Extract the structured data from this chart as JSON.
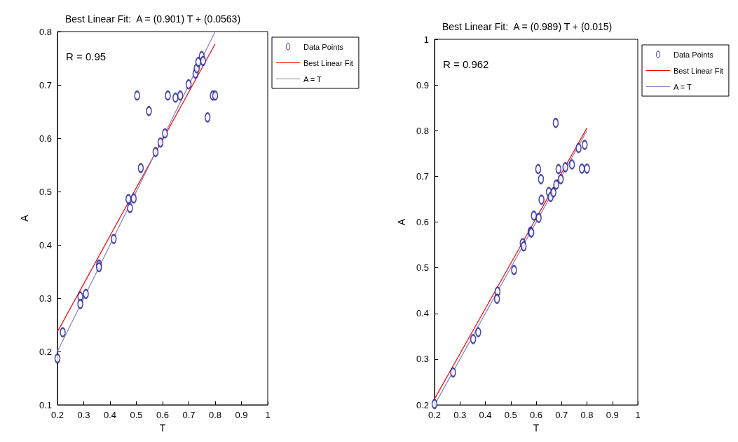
{
  "chart_data": [
    {
      "type": "scatter",
      "title": "Best Linear Fit:  A = (0.901) T + (0.0563)",
      "xlabel": "T",
      "ylabel": "A",
      "annotations": [
        "R = 0.95"
      ],
      "xlim": [
        0.2,
        1
      ],
      "xticks": [
        0.2,
        0.3,
        0.4,
        0.5,
        0.6,
        0.7,
        0.8,
        0.9,
        1
      ],
      "ylim": [
        0.1,
        0.8
      ],
      "yticks": [
        0.1,
        0.2,
        0.3,
        0.4,
        0.5,
        0.6,
        0.7,
        0.8
      ],
      "legend": "top right",
      "series": [
        {
          "name": "Data Points",
          "type": "scatter",
          "color": "#1f1f99",
          "marker": "circle",
          "x": [
            0.503,
            0.548,
            0.517,
            0.47,
            0.49,
            0.476,
            0.573,
            0.592,
            0.609,
            0.62,
            0.649,
            0.667,
            0.699,
            0.725,
            0.73,
            0.736,
            0.749,
            0.754,
            0.771,
            0.791,
            0.8,
            0.414,
            0.358,
            0.358,
            0.287,
            0.287,
            0.308,
            0.22,
            0.2
          ],
          "values": [
            0.68,
            0.651,
            0.544,
            0.486,
            0.487,
            0.469,
            0.574,
            0.592,
            0.609,
            0.68,
            0.676,
            0.68,
            0.701,
            0.721,
            0.731,
            0.743,
            0.754,
            0.745,
            0.639,
            0.68,
            0.68,
            0.411,
            0.363,
            0.358,
            0.303,
            0.289,
            0.308,
            0.236,
            0.187
          ]
        },
        {
          "name": "Best Linear Fit",
          "type": "line",
          "color": "#ff0000",
          "marker": "none",
          "x": [
            0.2,
            0.8
          ],
          "values": [
            0.237,
            0.777
          ]
        },
        {
          "name": "A = T",
          "type": "line",
          "color": "#8080c0",
          "marker": "none",
          "x": [
            0.2,
            0.8
          ],
          "values": [
            0.2,
            0.8
          ]
        }
      ]
    },
    {
      "type": "scatter",
      "title": "Best Linear Fit:  A = (0.989) T + (0.015)",
      "xlabel": "T",
      "ylabel": "A",
      "annotations": [
        "R = 0.962"
      ],
      "xlim": [
        0.2,
        1
      ],
      "xticks": [
        0.2,
        0.3,
        0.4,
        0.5,
        0.6,
        0.7,
        0.8,
        0.9,
        1
      ],
      "ylim": [
        0.2,
        1
      ],
      "yticks": [
        0.2,
        0.3,
        0.4,
        0.5,
        0.6,
        0.7,
        0.8,
        0.9,
        1
      ],
      "legend": "top right",
      "series": [
        {
          "name": "Data Points",
          "type": "scatter",
          "color": "#1f1f99",
          "marker": "circle",
          "x": [
            0.677,
            0.608,
            0.619,
            0.621,
            0.591,
            0.61,
            0.578,
            0.581,
            0.547,
            0.551,
            0.65,
            0.657,
            0.668,
            0.679,
            0.688,
            0.697,
            0.715,
            0.741,
            0.767,
            0.791,
            0.78,
            0.8,
            0.513,
            0.448,
            0.446,
            0.372,
            0.352,
            0.273,
            0.2
          ],
          "values": [
            0.817,
            0.716,
            0.694,
            0.649,
            0.614,
            0.609,
            0.579,
            0.577,
            0.554,
            0.547,
            0.666,
            0.655,
            0.665,
            0.682,
            0.716,
            0.694,
            0.72,
            0.726,
            0.762,
            0.769,
            0.717,
            0.717,
            0.495,
            0.448,
            0.432,
            0.359,
            0.344,
            0.271,
            0.202
          ]
        },
        {
          "name": "Best Linear Fit",
          "type": "line",
          "color": "#ff0000",
          "marker": "none",
          "x": [
            0.2,
            0.8
          ],
          "values": [
            0.213,
            0.806
          ]
        },
        {
          "name": "A = T",
          "type": "line",
          "color": "#8080c0",
          "marker": "none",
          "x": [
            0.2,
            0.8
          ],
          "values": [
            0.2,
            0.8
          ]
        }
      ]
    }
  ]
}
